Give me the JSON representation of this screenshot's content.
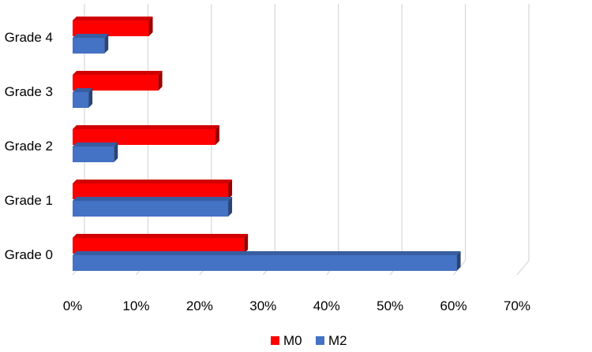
{
  "chart_data": {
    "type": "bar",
    "orientation": "horizontal",
    "style": "3d",
    "categories": [
      "Grade 4",
      "Grade 3",
      "Grade 2",
      "Grade 1",
      "Grade 0"
    ],
    "series": [
      {
        "name": "M0",
        "color": "#ff0000",
        "values": [
          12,
          13.5,
          22.5,
          24.5,
          27
        ]
      },
      {
        "name": "M2",
        "color": "#4472c4",
        "values": [
          5,
          2.5,
          6.5,
          24.5,
          60.5
        ]
      }
    ],
    "xlim": [
      0,
      70
    ],
    "x_ticks": [
      "0%",
      "10%",
      "20%",
      "30%",
      "40%",
      "50%",
      "60%",
      "70%"
    ],
    "grid": true,
    "legend_position": "bottom"
  }
}
